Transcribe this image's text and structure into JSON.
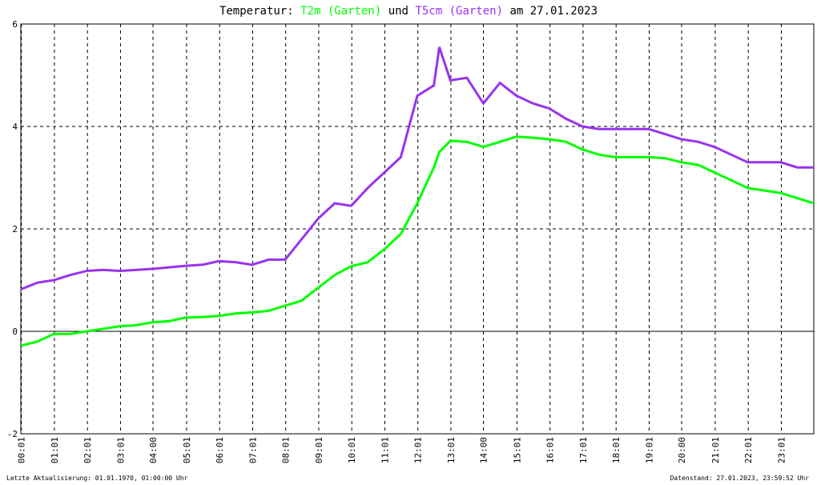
{
  "chart_data": {
    "type": "line",
    "title_prefix": "Temperatur:",
    "title_join": "und",
    "title_date": "am 27.01.2023",
    "footer_left": "Letzte Aktualisierung: 01.01.1970, 01:00:00 Uhr",
    "footer_right": "Datenstand: 27.01.2023, 23:59:52 Uhr",
    "x": [
      0,
      30,
      60,
      90,
      120,
      150,
      180,
      210,
      240,
      270,
      300,
      330,
      360,
      390,
      420,
      450,
      480,
      510,
      540,
      570,
      600,
      630,
      660,
      690,
      720,
      750,
      760,
      780,
      810,
      840,
      870,
      900,
      930,
      960,
      990,
      1020,
      1050,
      1080,
      1110,
      1140,
      1170,
      1200,
      1230,
      1260,
      1290,
      1320,
      1350,
      1380,
      1410,
      1440
    ],
    "xlim": [
      0,
      1440
    ],
    "xticks": [
      {
        "value": 1,
        "label": "00:01"
      },
      {
        "value": 61,
        "label": "01:01"
      },
      {
        "value": 121,
        "label": "02:01"
      },
      {
        "value": 181,
        "label": "03:01"
      },
      {
        "value": 240,
        "label": "04:00"
      },
      {
        "value": 301,
        "label": "05:01"
      },
      {
        "value": 361,
        "label": "06:01"
      },
      {
        "value": 421,
        "label": "07:01"
      },
      {
        "value": 481,
        "label": "08:01"
      },
      {
        "value": 541,
        "label": "09:01"
      },
      {
        "value": 601,
        "label": "10:01"
      },
      {
        "value": 661,
        "label": "11:01"
      },
      {
        "value": 721,
        "label": "12:01"
      },
      {
        "value": 781,
        "label": "13:01"
      },
      {
        "value": 840,
        "label": "14:00"
      },
      {
        "value": 901,
        "label": "15:01"
      },
      {
        "value": 961,
        "label": "16:01"
      },
      {
        "value": 1021,
        "label": "17:01"
      },
      {
        "value": 1081,
        "label": "18:01"
      },
      {
        "value": 1141,
        "label": "19:01"
      },
      {
        "value": 1200,
        "label": "20:00"
      },
      {
        "value": 1261,
        "label": "21:01"
      },
      {
        "value": 1321,
        "label": "22:01"
      },
      {
        "value": 1381,
        "label": "23:01"
      }
    ],
    "ylim": [
      -2,
      6
    ],
    "yticks": [
      -2,
      0,
      2,
      4,
      6
    ],
    "grid": true,
    "series": [
      {
        "name": "T2m (Garten)",
        "color": "#00ff00",
        "values": [
          -0.28,
          -0.2,
          -0.05,
          -0.05,
          0.0,
          0.05,
          0.1,
          0.12,
          0.18,
          0.2,
          0.27,
          0.28,
          0.3,
          0.35,
          0.37,
          0.4,
          0.5,
          0.6,
          0.85,
          1.1,
          1.27,
          1.35,
          1.6,
          1.9,
          2.5,
          3.2,
          3.5,
          3.72,
          3.7,
          3.6,
          3.7,
          3.8,
          3.78,
          3.75,
          3.7,
          3.55,
          3.45,
          3.4,
          3.4,
          3.4,
          3.38,
          3.3,
          3.25,
          3.1,
          2.95,
          2.8,
          2.75,
          2.7,
          2.6,
          2.5
        ]
      },
      {
        "name": "T5cm (Garten)",
        "color": "#9933ee",
        "values": [
          0.82,
          0.95,
          1.0,
          1.1,
          1.18,
          1.2,
          1.18,
          1.2,
          1.22,
          1.25,
          1.28,
          1.3,
          1.37,
          1.35,
          1.3,
          1.4,
          1.4,
          1.8,
          2.2,
          2.5,
          2.45,
          2.8,
          3.1,
          3.4,
          4.6,
          4.8,
          5.55,
          4.9,
          4.95,
          4.45,
          4.85,
          4.6,
          4.45,
          4.35,
          4.15,
          4.0,
          3.95,
          3.95,
          3.95,
          3.95,
          3.85,
          3.75,
          3.7,
          3.6,
          3.45,
          3.3,
          3.3,
          3.3,
          3.2,
          3.2
        ]
      }
    ]
  }
}
